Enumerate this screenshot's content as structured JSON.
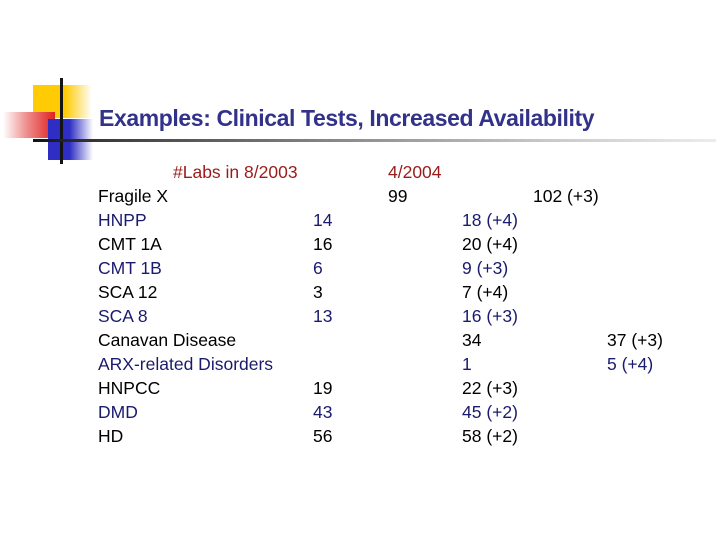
{
  "slide": {
    "title": "Examples: Clinical Tests, Increased Availability"
  },
  "table": {
    "header": {
      "labs_2003": "#Labs in 8/2003",
      "date_2004": "4/2004"
    },
    "rows": [
      {
        "name": "Fragile X",
        "color": "black",
        "cells": [
          {
            "col": "v2first",
            "text": "99"
          },
          {
            "col": "v3",
            "text": "102 (+3)"
          }
        ]
      },
      {
        "name": "HNPP",
        "color": "navy",
        "cells": [
          {
            "col": "v1",
            "text": "14"
          },
          {
            "col": "v2",
            "text": "18 (+4)"
          }
        ]
      },
      {
        "name": "CMT 1A",
        "color": "black",
        "cells": [
          {
            "col": "v1",
            "text": "16"
          },
          {
            "col": "v2",
            "text": "20 (+4)"
          }
        ]
      },
      {
        "name": "CMT 1B",
        "color": "navy",
        "cells": [
          {
            "col": "v1",
            "text": "6"
          },
          {
            "col": "v2",
            "text": "9 (+3)"
          }
        ]
      },
      {
        "name": "SCA 12",
        "color": "black",
        "cells": [
          {
            "col": "v1",
            "text": "3"
          },
          {
            "col": "v2",
            "text": "7 (+4)"
          }
        ]
      },
      {
        "name": "SCA 8",
        "color": "navy",
        "cells": [
          {
            "col": "v1",
            "text": "13"
          },
          {
            "col": "v2",
            "text": "16 (+3)"
          }
        ]
      },
      {
        "name": "Canavan Disease",
        "color": "black",
        "cells": [
          {
            "col": "v2",
            "text": "34"
          },
          {
            "col": "v3far",
            "text": "37 (+3)"
          }
        ]
      },
      {
        "name": "ARX-related Disorders",
        "color": "navy",
        "cells": [
          {
            "col": "v2",
            "text": "1"
          },
          {
            "col": "v3far",
            "text": "5 (+4)"
          }
        ]
      },
      {
        "name": "HNPCC",
        "color": "black",
        "cells": [
          {
            "col": "v1",
            "text": "19"
          },
          {
            "col": "v2",
            "text": "22 (+3)"
          }
        ]
      },
      {
        "name": "DMD",
        "color": "navy",
        "cells": [
          {
            "col": "v1",
            "text": "43"
          },
          {
            "col": "v2",
            "text": "45 (+2)"
          }
        ]
      },
      {
        "name": "HD",
        "color": "black",
        "cells": [
          {
            "col": "v1",
            "text": "56"
          },
          {
            "col": "v2",
            "text": "58 (+2)"
          }
        ]
      }
    ]
  },
  "colors": {
    "title_navy": "#32328A",
    "header_red": "#9B1B1B",
    "row_black": "#000000",
    "row_navy": "#1A1A6E",
    "accent_yellow": "#FFCB05",
    "accent_blue": "#2E2EC4",
    "accent_red": "#E02020"
  }
}
